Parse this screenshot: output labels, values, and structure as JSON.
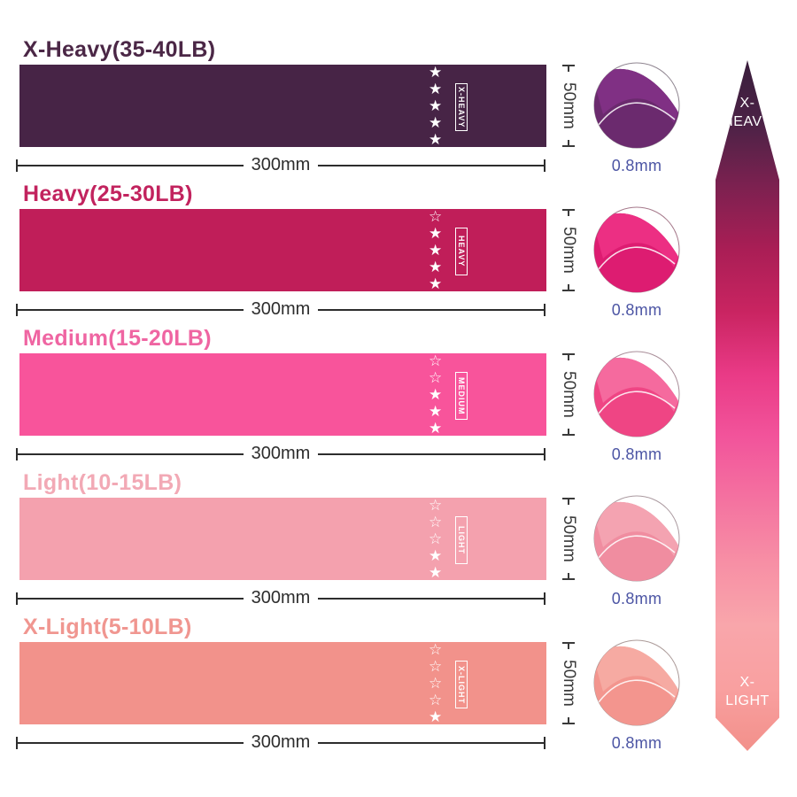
{
  "page": {
    "background": "#ffffff"
  },
  "shared": {
    "width_label": "300mm",
    "height_label": "50mm",
    "thickness_label": "0.8mm",
    "thickness_color": "#4c55a4",
    "dimension_color": "#3a3a3a",
    "star_filled_glyph": "★",
    "star_outline_glyph": "☆",
    "star_color": "#ffffff"
  },
  "bands": [
    {
      "title": "X-Heavy(35-40LB)",
      "label": "X-HEAVY",
      "stars_filled": 5,
      "stars_total": 5,
      "colors": {
        "band": "#472446",
        "title": "#4b2746",
        "thumb_body": "#6b2a6e",
        "thumb_flap": "#803084",
        "thumb_border": "#8f8590"
      }
    },
    {
      "title": "Heavy(25-30LB)",
      "label": "HEAVY",
      "stars_filled": 4,
      "stars_total": 5,
      "colors": {
        "band": "#c01e59",
        "title": "#c2235e",
        "thumb_body": "#dd1c71",
        "thumb_flap": "#ec2f83",
        "thumb_border": "#a5788a"
      }
    },
    {
      "title": "Medium(15-20LB)",
      "label": "MEDIUM",
      "stars_filled": 3,
      "stars_total": 5,
      "colors": {
        "band": "#f8549b",
        "title": "#ef65a2",
        "thumb_body": "#ef4584",
        "thumb_flap": "#f56a9e",
        "thumb_border": "#a98e99"
      }
    },
    {
      "title": "Light(10-15LB)",
      "label": "LIGHT",
      "stars_filled": 2,
      "stars_total": 5,
      "colors": {
        "band": "#f4a1ae",
        "title": "#f2a9b5",
        "thumb_body": "#f08da0",
        "thumb_flap": "#f4a3b1",
        "thumb_border": "#ab9aa0"
      }
    },
    {
      "title": "X-Light(5-10LB)",
      "label": "X-LIGHT",
      "stars_filled": 1,
      "stars_total": 5,
      "colors": {
        "band": "#f2928b",
        "title": "#f09690",
        "thumb_body": "#f3958e",
        "thumb_flap": "#f6aaa2",
        "thumb_border": "#ab9a98"
      }
    }
  ],
  "arrow": {
    "top_line1": "X-",
    "top_line2": "HEAVY",
    "bottom_line1": "X-",
    "bottom_line2": "LIGHT",
    "text_color": "#ffffff",
    "gradient": [
      "#3a1e3c",
      "#4b2246",
      "#7c2150",
      "#a91e55",
      "#c92461",
      "#e93a86",
      "#f2549b",
      "#f472a0",
      "#f78fa5",
      "#f9a6ab",
      "#f9a0a0",
      "#f2908a"
    ]
  }
}
